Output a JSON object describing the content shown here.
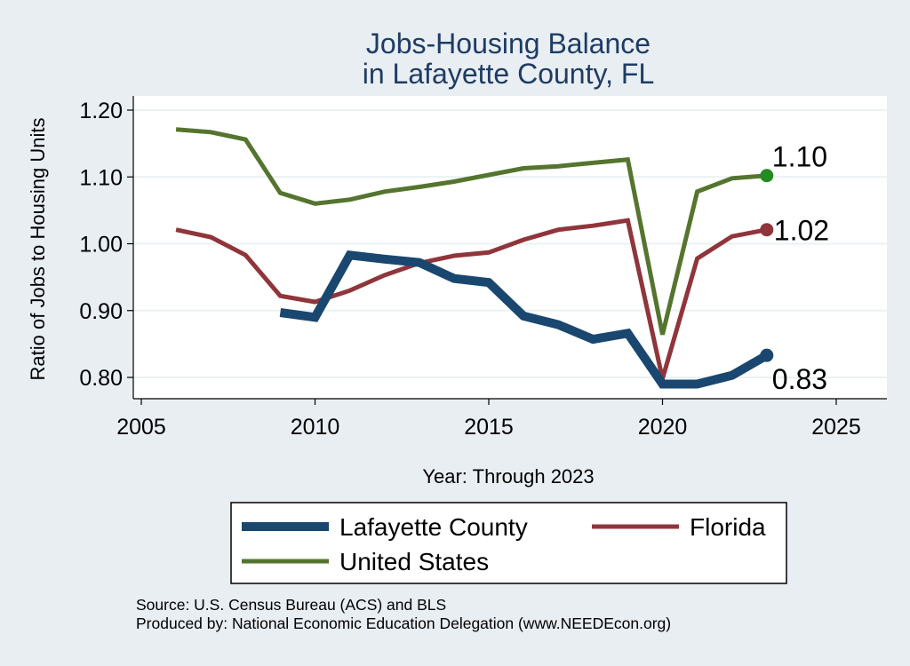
{
  "chart_data": {
    "type": "line",
    "title": [
      "Jobs-Housing Balance",
      "in Lafayette County, FL"
    ],
    "xlabel": "Year: Through 2023",
    "ylabel": "Ratio of Jobs to Housing Units",
    "xlim": [
      2005,
      2026.5
    ],
    "ylim": [
      0.77,
      1.225
    ],
    "xticks": [
      2005,
      2010,
      2015,
      2020,
      2025
    ],
    "yticks": [
      0.8,
      0.9,
      1.0,
      1.1,
      1.2
    ],
    "yticklabels": [
      "0.80",
      "0.90",
      "1.00",
      "1.10",
      "1.20"
    ],
    "grid": true,
    "series": [
      {
        "name": "Lafayette County",
        "color": "#1a476f",
        "weight": "thick",
        "x": [
          2009,
          2010,
          2011,
          2012,
          2013,
          2014,
          2015,
          2016,
          2017,
          2018,
          2019,
          2020,
          2021,
          2022,
          2023
        ],
        "values": [
          0.897,
          0.89,
          0.983,
          0.977,
          0.972,
          0.948,
          0.942,
          0.892,
          0.879,
          0.857,
          0.866,
          0.79,
          0.79,
          0.803,
          0.833
        ],
        "end_label": "0.83"
      },
      {
        "name": "Florida",
        "color": "#90353b",
        "weight": "normal",
        "x": [
          2006,
          2007,
          2008,
          2009,
          2010,
          2011,
          2012,
          2013,
          2014,
          2015,
          2016,
          2017,
          2018,
          2019,
          2020,
          2021,
          2022,
          2023
        ],
        "values": [
          1.021,
          1.01,
          0.983,
          0.922,
          0.913,
          0.93,
          0.953,
          0.971,
          0.982,
          0.987,
          1.006,
          1.021,
          1.027,
          1.035,
          0.798,
          0.978,
          1.011,
          1.021
        ],
        "end_label": "1.02"
      },
      {
        "name": "United States",
        "color": "#55752f",
        "weight": "normal",
        "x": [
          2006,
          2007,
          2008,
          2009,
          2010,
          2011,
          2012,
          2013,
          2014,
          2015,
          2016,
          2017,
          2018,
          2019,
          2020,
          2021,
          2022,
          2023
        ],
        "values": [
          1.171,
          1.167,
          1.156,
          1.076,
          1.06,
          1.066,
          1.078,
          1.085,
          1.093,
          1.103,
          1.113,
          1.116,
          1.121,
          1.126,
          0.864,
          1.078,
          1.098,
          1.102
        ],
        "end_label": "1.10"
      }
    ],
    "legend": {
      "position": "bottom",
      "entries": [
        "Lafayette County",
        "Florida",
        "United States"
      ]
    },
    "notes": [
      "Source: U.S. Census Bureau (ACS) and BLS",
      "Produced by: National Economic Education Delegation (www.NEEDEcon.org)"
    ]
  },
  "colors": {
    "background": "#e9eef3",
    "plot_background": "#ffffff",
    "grid": "#eaf2f3",
    "title": "#1e3c64",
    "text": "#000000",
    "end_marker_us": "#228b22"
  }
}
